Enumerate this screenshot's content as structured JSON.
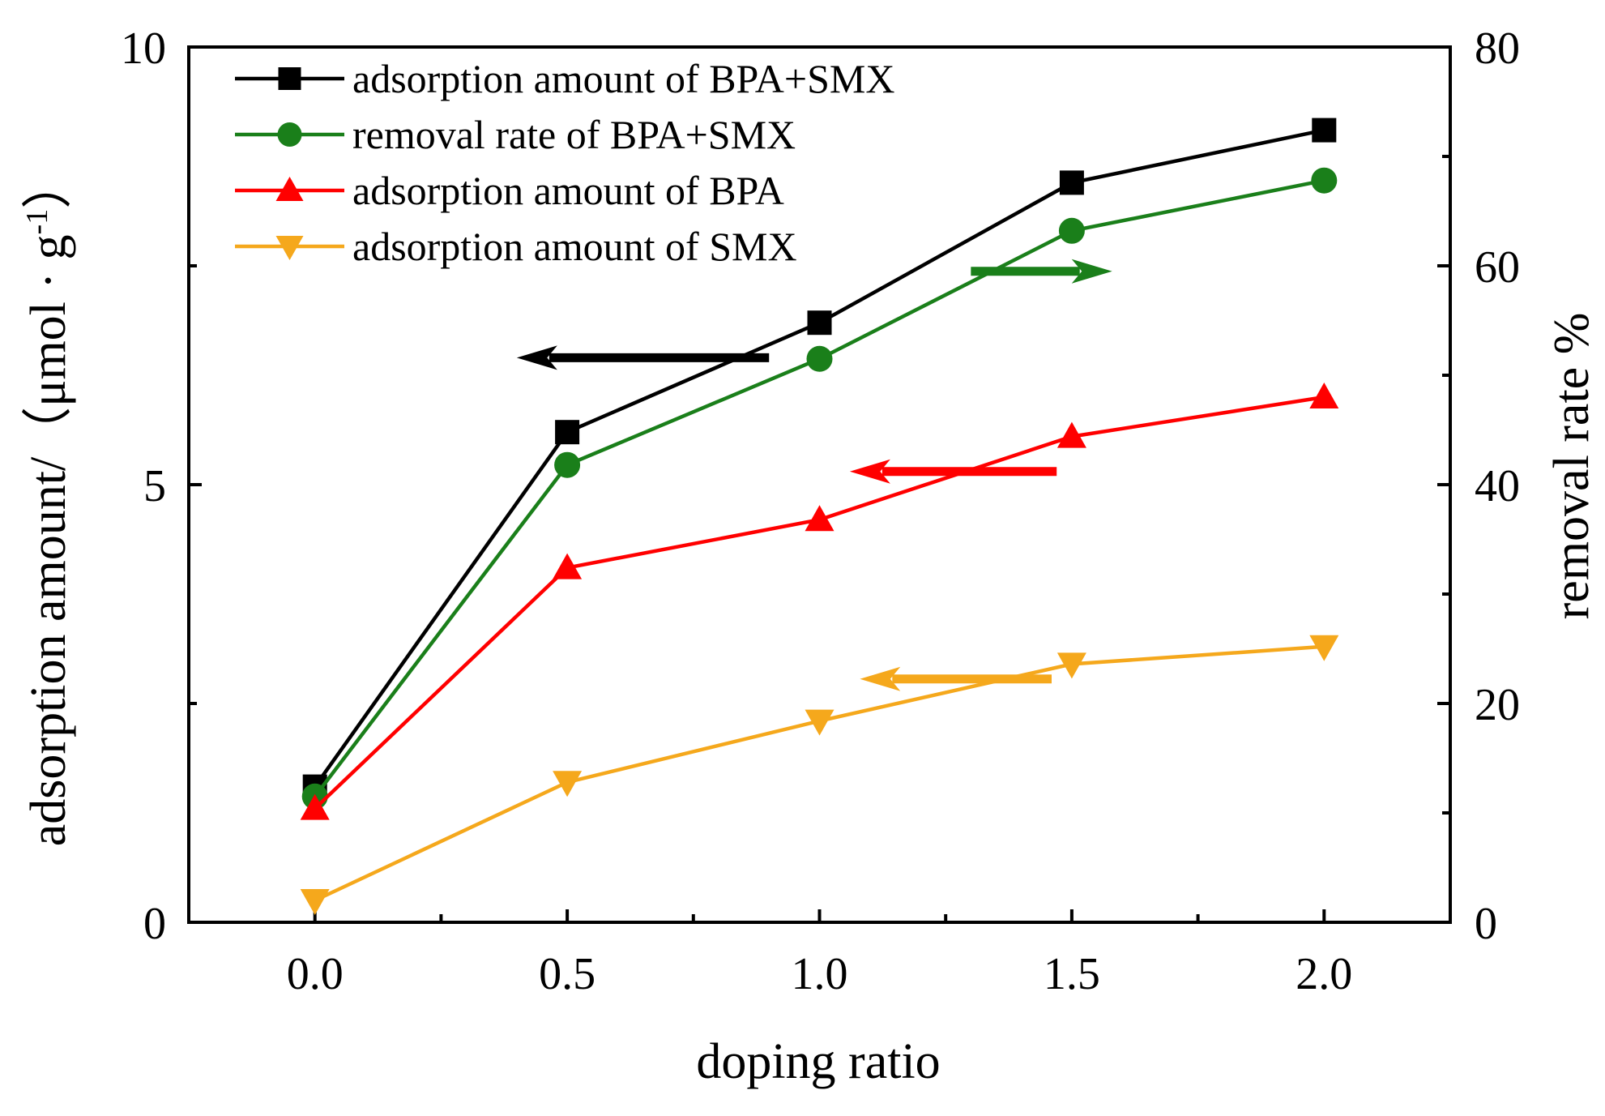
{
  "chart_data": {
    "type": "line",
    "title": "",
    "xlabel": "doping ratio",
    "ylabel_left": "adsorption amount/（μmol · g",
    "ylabel_left_sup": "-1",
    "ylabel_left_close": "）",
    "ylabel_right": "removal rate %",
    "x": [
      0.0,
      0.5,
      1.0,
      1.5,
      2.0
    ],
    "xlim": [
      -0.25,
      2.25
    ],
    "ylim_left": [
      0,
      10
    ],
    "ylim_right": [
      0,
      80
    ],
    "x_ticks": [
      "0.0",
      "0.5",
      "1.0",
      "1.5",
      "2.0"
    ],
    "y_left_ticks": [
      "0",
      "5",
      "10"
    ],
    "y_right_ticks": [
      "0",
      "20",
      "40",
      "60",
      "80"
    ],
    "legend_position": "top-left",
    "series": [
      {
        "name": "adsorption amount of BPA+SMX",
        "axis": "left",
        "marker": "square",
        "color": "#000000",
        "values": [
          1.55,
          5.6,
          6.85,
          8.45,
          9.05
        ]
      },
      {
        "name": "removal rate of BPA+SMX",
        "axis": "right",
        "marker": "circle",
        "color": "#1a7f1a",
        "values": [
          11.5,
          41.8,
          51.5,
          63.2,
          67.8
        ]
      },
      {
        "name": "adsorption amount of BPA",
        "axis": "left",
        "marker": "triangle-up",
        "color": "#ff0000",
        "values": [
          1.3,
          4.05,
          4.6,
          5.55,
          6.0
        ]
      },
      {
        "name": "adsorption amount of SMX",
        "axis": "left",
        "marker": "triangle-down",
        "color": "#f5a81c",
        "values": [
          0.25,
          1.6,
          2.3,
          2.95,
          3.15
        ]
      }
    ],
    "annotations": [
      {
        "type": "arrow",
        "direction": "left",
        "series": "adsorption amount of BPA+SMX",
        "axis": "left",
        "x_from": 0.9,
        "x_to": 0.4,
        "y": 6.45
      },
      {
        "type": "arrow",
        "direction": "right",
        "series": "removal rate of BPA+SMX",
        "axis": "right",
        "x_from": 1.3,
        "x_to": 1.58,
        "y": 59.5
      },
      {
        "type": "arrow",
        "direction": "left",
        "series": "adsorption amount of BPA",
        "axis": "left",
        "x_from": 1.47,
        "x_to": 1.06,
        "y": 5.15
      },
      {
        "type": "arrow",
        "direction": "left",
        "series": "adsorption amount of SMX",
        "axis": "left",
        "x_from": 1.46,
        "x_to": 1.08,
        "y": 2.78
      }
    ]
  }
}
